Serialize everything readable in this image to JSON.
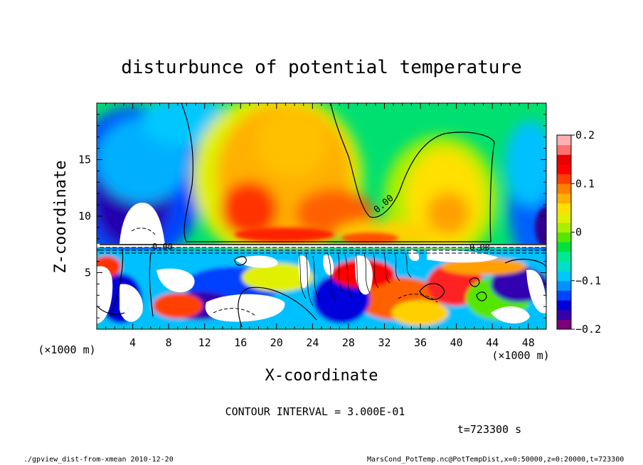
{
  "chart_data": {
    "type": "heatmap",
    "title": "disturbunce of potential temperature",
    "xlabel": "X-coordinate",
    "ylabel": "Z-coordinate",
    "x_unit": "(×1000 m)",
    "y_unit": "(×1000 m)",
    "xlim": [
      0,
      50
    ],
    "ylim": [
      0,
      20
    ],
    "xticks": [
      4,
      8,
      12,
      16,
      20,
      24,
      28,
      32,
      36,
      40,
      44,
      48
    ],
    "yticks": [
      5,
      10,
      15
    ],
    "colorbar": {
      "range": [
        -0.2,
        0.2
      ],
      "ticks": [
        0.2,
        0.1,
        0,
        -0.1,
        -0.2
      ],
      "tick_labels": [
        "0.2",
        "0.1",
        "0",
        "−0.1",
        "−0.2"
      ],
      "colors": [
        "#7b007b",
        "#3300aa",
        "#0000dd",
        "#0044ff",
        "#0090ff",
        "#00c8ff",
        "#00e0c8",
        "#00e890",
        "#00e040",
        "#55e600",
        "#aaee00",
        "#e0f000",
        "#ffe000",
        "#ffb000",
        "#ff8000",
        "#ff4000",
        "#ff0000",
        "#e80000",
        "#ff7070",
        "#ffb0b0"
      ]
    },
    "contour_labels": [
      "0.00",
      "0.00",
      "0.00"
    ],
    "contour_interval_text": "CONTOUR INTERVAL = 3.000E-01",
    "time_text": "t=723300 s"
  },
  "footer": {
    "left": "./gpview_dist-from-xmean  2010-12-20",
    "right": "MarsCond_PotTemp.nc@PotTempDist,x=0:50000,z=0:20000,t=723300"
  }
}
